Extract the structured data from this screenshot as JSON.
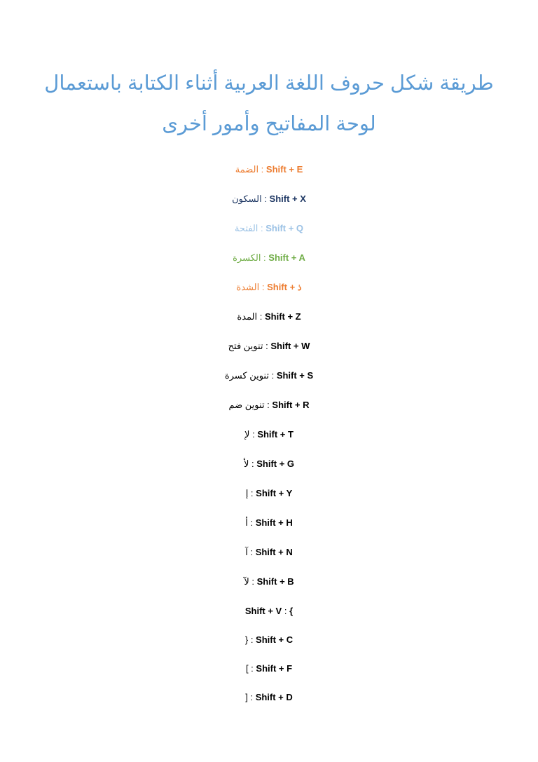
{
  "title": {
    "text": "طريقة شكل حروف اللغة العربية أثناء الكتابة باستعمال لوحة المفاتيح وأمور أخرى",
    "color": "#5b9bd5"
  },
  "separator": " : ",
  "rows": [
    {
      "label": "الضمة",
      "shortcut": "Shift + E",
      "color": "#ed7d31"
    },
    {
      "label": "السكون",
      "shortcut": "Shift + X",
      "color": "#1f3864"
    },
    {
      "label": "الفتحة",
      "shortcut": "Shift + Q",
      "color": "#9cc2e5"
    },
    {
      "label": "الكسرة",
      "shortcut": "Shift + A",
      "color": "#70ad47"
    },
    {
      "label": "الشدة",
      "shortcut": "Shift + ذ",
      "color": "#ed7d31"
    },
    {
      "label": "المدة",
      "shortcut": "Shift + Z",
      "color": "#000000"
    },
    {
      "label": "تنوين فتح",
      "shortcut": "Shift + W",
      "color": "#000000"
    },
    {
      "label": "تنوين كسرة",
      "shortcut": "Shift + S",
      "color": "#000000"
    },
    {
      "label": "تنوين ضم",
      "shortcut": "Shift + R",
      "color": "#000000"
    },
    {
      "label": "لإ",
      "shortcut": "Shift + T",
      "color": "#000000"
    },
    {
      "label": "لأ",
      "shortcut": "Shift + G",
      "color": "#000000"
    },
    {
      "label": "إ",
      "shortcut": "Shift + Y",
      "color": "#000000"
    },
    {
      "label": "أ",
      "shortcut": "Shift + H",
      "color": "#000000"
    },
    {
      "label": "آ",
      "shortcut": "Shift + N",
      "color": "#000000"
    },
    {
      "label": "لآ",
      "shortcut": "Shift + B",
      "color": "#000000"
    },
    {
      "label": "Shift + V",
      "shortcut": "{",
      "color": "#000000",
      "reversed": true
    },
    {
      "label": "}",
      "shortcut": "Shift + C",
      "color": "#000000"
    },
    {
      "label": "[",
      "shortcut": "Shift + F",
      "color": "#000000"
    },
    {
      "label": "]",
      "shortcut": "Shift + D",
      "color": "#000000"
    }
  ]
}
